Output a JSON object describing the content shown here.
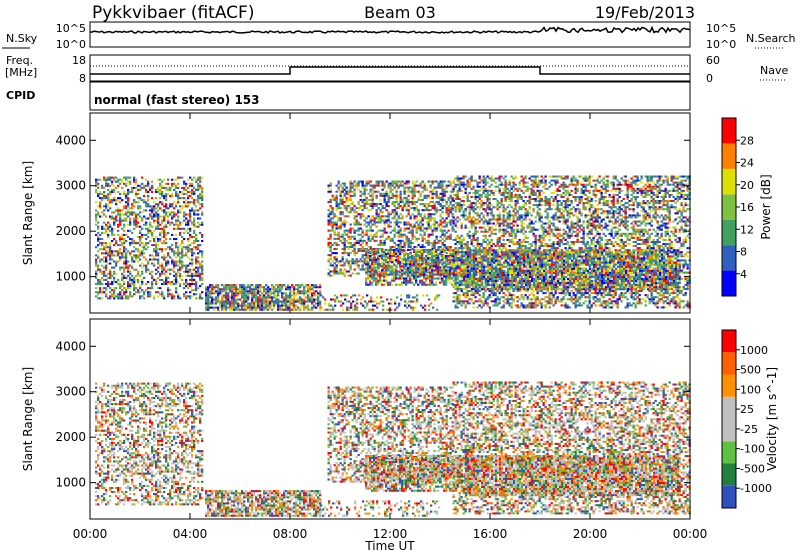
{
  "header": {
    "radar": "Pykkvibaer (fitACF)",
    "beam": "Beam 03",
    "date": "19/Feb/2013"
  },
  "noise_panel": {
    "left_label": "N.Sky",
    "left_ticks": [
      "10^5",
      "10^0"
    ],
    "right_ticks": [
      "10^5",
      "10^0"
    ],
    "right_label": "N.Search"
  },
  "freq_panel": {
    "left_label_line1": "Freq.",
    "left_label_line2": "[MHz]",
    "left_ticks": [
      "18",
      "8"
    ],
    "right_ticks": [
      "60",
      "0"
    ],
    "right_label": "Nave"
  },
  "cpid_panel": {
    "label": "CPID",
    "text": "normal (fast stereo) 153"
  },
  "xaxis": {
    "title": "Time UT",
    "ticks": [
      "00:00",
      "04:00",
      "08:00",
      "12:00",
      "16:00",
      "20:00",
      "00:00"
    ]
  },
  "chart_data": [
    {
      "type": "heatmap",
      "title": "",
      "xlabel": "Time UT",
      "ylabel": "Slant Range [km]",
      "x_range_hours": [
        0,
        24
      ],
      "ylim": [
        200,
        4600
      ],
      "yticks": [
        "4000",
        "3000",
        "2000",
        "1000"
      ],
      "colorbar": {
        "label": "Power [dB]",
        "ticks": [
          "28",
          "24",
          "20",
          "16",
          "12",
          "8",
          "4"
        ],
        "colors": [
          "#0000ff",
          "#3060c0",
          "#40a060",
          "#80c040",
          "#e0e000",
          "#ff8000",
          "#ff0000"
        ]
      }
    },
    {
      "type": "heatmap",
      "title": "",
      "xlabel": "Time UT",
      "ylabel": "Slant Range [km]",
      "x_range_hours": [
        0,
        24
      ],
      "ylim": [
        200,
        4600
      ],
      "yticks": [
        "4000",
        "3000",
        "2000",
        "1000"
      ],
      "colorbar": {
        "label": "Velocity [m s^-1]",
        "ticks": [
          "1000",
          "500",
          "100",
          "25",
          "-25",
          "-100",
          "-500",
          "-1000"
        ],
        "colors": [
          "#3050c0",
          "#208040",
          "#60c040",
          "#c0c0c0",
          "#c0c0c0",
          "#ff9000",
          "#ff6000",
          "#ff0000"
        ]
      }
    }
  ]
}
